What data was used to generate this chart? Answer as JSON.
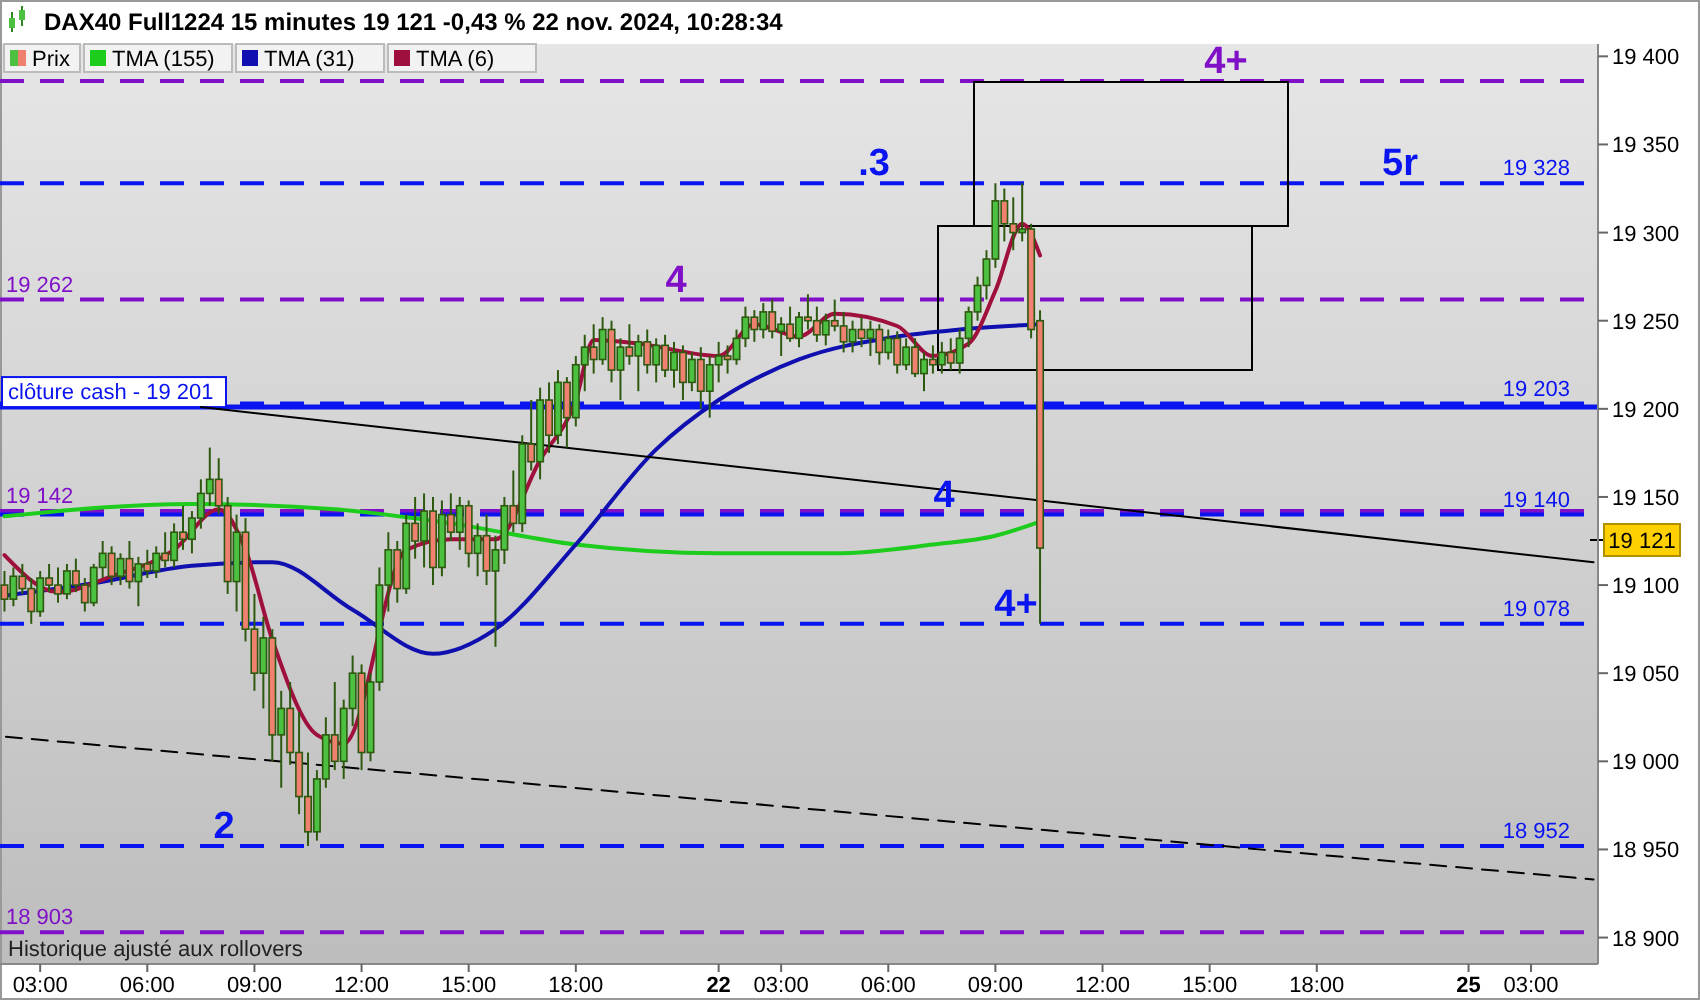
{
  "chart_data": {
    "type": "candlestick",
    "title": "DAX40 Full1224 15 minutes 19 121 -0,43 % 22 nov. 2024, 10:28:34",
    "legend": "top left",
    "grid": false,
    "categories": [
      null,
      null,
      null,
      null,
      "03:00",
      null,
      null,
      null,
      null,
      null,
      null,
      null,
      null,
      null,
      null,
      null,
      "06:00",
      null,
      null,
      null,
      null,
      null,
      null,
      null,
      null,
      null,
      null,
      null,
      "09:00",
      null,
      null,
      null,
      null,
      null,
      null,
      null,
      null,
      null,
      null,
      null,
      "12:00",
      null,
      null,
      null,
      null,
      null,
      null,
      null,
      null,
      null,
      null,
      null,
      "15:00",
      null,
      null,
      null,
      null,
      null,
      null,
      null,
      null,
      null,
      null,
      null,
      "18:00",
      null,
      null,
      null,
      null,
      null,
      null,
      null,
      null,
      null,
      null,
      null,
      null,
      null,
      null,
      null,
      "22",
      null,
      null,
      null,
      null,
      null,
      null,
      "03:00",
      null,
      null,
      null,
      null,
      null,
      null,
      null,
      null,
      null,
      null,
      null,
      "06:00",
      null,
      null,
      null,
      null,
      null,
      null,
      null,
      null,
      null,
      null,
      null,
      "09:00",
      null,
      null,
      null,
      null,
      null,
      null,
      null,
      null,
      null,
      null,
      null,
      "12:00",
      null,
      null,
      null,
      null,
      null,
      null,
      null,
      null,
      null,
      null,
      null,
      "15:00",
      null,
      null,
      null,
      null,
      null,
      null,
      null,
      null,
      null,
      null,
      null,
      "18:00",
      null,
      null,
      null,
      null,
      null,
      null,
      null,
      null,
      null,
      null,
      null,
      null,
      null,
      null,
      null,
      null,
      "25",
      null,
      null,
      null,
      null,
      null,
      null,
      "03:00",
      null,
      null,
      null,
      null,
      null,
      null,
      null
    ],
    "ylim": [
      18885,
      19407
    ],
    "yticks": [
      {
        "value": 18900,
        "label": "18 900"
      },
      {
        "value": 18950,
        "label": "18 950"
      },
      {
        "value": 19000,
        "label": "19 000"
      },
      {
        "value": 19050,
        "label": "19 050"
      },
      {
        "value": 19100,
        "label": "19 100"
      },
      {
        "value": 19150,
        "label": "19 150"
      },
      {
        "value": 19200,
        "label": "19 200"
      },
      {
        "value": 19250,
        "label": "19 250"
      },
      {
        "value": 19300,
        "label": "19 300"
      },
      {
        "value": 19350,
        "label": "19 350"
      },
      {
        "value": 19400,
        "label": "19 400"
      }
    ],
    "series": [
      {
        "name": "Prix",
        "type": "candlestick",
        "colors": [
          "#f08070",
          "#4cc040",
          "#f08070",
          "#f08070",
          "#4cc040",
          "#f08070",
          "#f08070",
          "#4cc040",
          "#f08070",
          "#f08070",
          "#4cc040",
          "#4cc040",
          "#f08070",
          "#4cc040",
          "#f08070",
          "#4cc040",
          "#f08070",
          "#4cc040",
          "#f08070",
          "#4cc040",
          "#f08070",
          "#4cc040",
          "#4cc040",
          "#4cc040",
          "#f08070",
          "#f08070",
          "#4cc040",
          "#f08070",
          "#f08070",
          "#4cc040",
          "#f08070",
          "#4cc040",
          "#f08070",
          "#f08070",
          "#f08070",
          "#4cc040",
          "#4cc040",
          "#f08070",
          "#4cc040",
          "#4cc040",
          "#f08070",
          "#4cc040",
          "#4cc040",
          "#4cc040",
          "#f08070",
          "#4cc040",
          "#f08070",
          "#4cc040",
          "#f08070",
          "#4cc040",
          "#f08070",
          "#4cc040",
          "#f08070",
          "#4cc040",
          "#f08070",
          "#4cc040",
          "#4cc040",
          "#f08070",
          "#4cc040",
          "#f08070",
          "#4cc040",
          "#f08070",
          "#4cc040",
          "#f08070",
          "#4cc040",
          "#4cc040",
          "#f08070",
          "#4cc040",
          "#f08070",
          "#4cc040",
          "#f08070",
          "#4cc040",
          "#f08070",
          "#4cc040",
          "#f08070",
          "#4cc040",
          "#f08070",
          "#4cc040",
          "#f08070",
          "#4cc040",
          "#4cc040",
          "#f08070",
          "#4cc040",
          "#4cc040",
          "#f08070",
          "#4cc040",
          "#f08070",
          "#4cc040",
          "#f08070",
          "#4cc040",
          "#f08070",
          "#f08070",
          "#4cc040",
          "#f08070",
          "#f08070",
          "#4cc040",
          "#f08070",
          "#4cc040",
          "#f08070",
          "#4cc040",
          "#f08070",
          "#4cc040",
          "#f08070",
          "#4cc040",
          "#f08070",
          "#4cc040",
          "#f08070",
          "#4cc040",
          "#4cc040",
          "#4cc040",
          "#4cc040",
          "#4cc040",
          "#f08070",
          "#f08070",
          "#4cc040",
          "#f08070",
          "#f08070",
          null,
          null,
          null,
          null,
          null,
          null,
          null,
          null,
          null,
          null,
          null,
          null,
          null,
          null,
          null,
          null,
          null,
          null,
          null,
          null,
          null,
          null,
          null,
          null,
          null,
          null,
          null,
          null,
          null,
          null,
          null,
          null,
          null,
          null,
          null,
          null,
          null,
          null,
          null,
          null,
          null,
          null,
          null,
          null,
          null,
          null,
          null,
          null,
          null,
          null,
          null,
          null,
          null,
          null,
          null,
          null,
          null,
          null,
          null,
          null,
          null,
          null
        ],
        "ohlc": [
          [
            19100,
            19108,
            19085,
            19092
          ],
          [
            19092,
            19110,
            19088,
            19105
          ],
          [
            19105,
            19112,
            19095,
            19098
          ],
          [
            19098,
            19104,
            19078,
            19085
          ],
          [
            19085,
            19108,
            19082,
            19104
          ],
          [
            19104,
            19112,
            19096,
            19100
          ],
          [
            19100,
            19110,
            19090,
            19095
          ],
          [
            19095,
            19112,
            19092,
            19108
          ],
          [
            19108,
            19115,
            19096,
            19100
          ],
          [
            19100,
            19104,
            19085,
            19090
          ],
          [
            19090,
            19112,
            19088,
            19110
          ],
          [
            19110,
            19125,
            19104,
            19118
          ],
          [
            19118,
            19122,
            19100,
            19105
          ],
          [
            19105,
            19118,
            19100,
            19115
          ],
          [
            19115,
            19125,
            19098,
            19102
          ],
          [
            19102,
            19116,
            19088,
            19112
          ],
          [
            19112,
            19120,
            19104,
            19108
          ],
          [
            19108,
            19122,
            19104,
            19118
          ],
          [
            19118,
            19130,
            19110,
            19114
          ],
          [
            19114,
            19135,
            19110,
            19130
          ],
          [
            19130,
            19145,
            19120,
            19126
          ],
          [
            19126,
            19142,
            19118,
            19138
          ],
          [
            19138,
            19160,
            19132,
            19152
          ],
          [
            19152,
            19178,
            19145,
            19160
          ],
          [
            19160,
            19172,
            19140,
            19145
          ],
          [
            19145,
            19150,
            19095,
            19102
          ],
          [
            19102,
            19140,
            19085,
            19130
          ],
          [
            19130,
            19138,
            19068,
            19075
          ],
          [
            19075,
            19095,
            19040,
            19050
          ],
          [
            19050,
            19082,
            19030,
            19070
          ],
          [
            19070,
            19075,
            19000,
            19015
          ],
          [
            19015,
            19040,
            18985,
            19030
          ],
          [
            19030,
            19045,
            18998,
            19005
          ],
          [
            19005,
            19028,
            18970,
            18980
          ],
          [
            18980,
            19005,
            18952,
            18960
          ],
          [
            18960,
            18995,
            18955,
            18990
          ],
          [
            18990,
            19025,
            18985,
            19015
          ],
          [
            19015,
            19045,
            18995,
            19000
          ],
          [
            19000,
            19035,
            18990,
            19030
          ],
          [
            19030,
            19060,
            19020,
            19050
          ],
          [
            19050,
            19055,
            18995,
            19005
          ],
          [
            19005,
            19050,
            19000,
            19045
          ],
          [
            19045,
            19110,
            19040,
            19100
          ],
          [
            19100,
            19130,
            19085,
            19120
          ],
          [
            19120,
            19125,
            19090,
            19098
          ],
          [
            19098,
            19140,
            19095,
            19135
          ],
          [
            19135,
            19150,
            19115,
            19125
          ],
          [
            19125,
            19152,
            19110,
            19142
          ],
          [
            19142,
            19150,
            19100,
            19110
          ],
          [
            19110,
            19148,
            19105,
            19140
          ],
          [
            19140,
            19152,
            19125,
            19130
          ],
          [
            19130,
            19150,
            19120,
            19145
          ],
          [
            19145,
            19148,
            19110,
            19118
          ],
          [
            19118,
            19135,
            19105,
            19128
          ],
          [
            19128,
            19140,
            19100,
            19108
          ],
          [
            19108,
            19128,
            19065,
            19120
          ],
          [
            19120,
            19150,
            19112,
            19145
          ],
          [
            19145,
            19165,
            19130,
            19135
          ],
          [
            19135,
            19185,
            19130,
            19180
          ],
          [
            19180,
            19205,
            19165,
            19170
          ],
          [
            19170,
            19212,
            19160,
            19205
          ],
          [
            19205,
            19215,
            19175,
            19185
          ],
          [
            19185,
            19222,
            19180,
            19215
          ],
          [
            19215,
            19218,
            19178,
            19195
          ],
          [
            19195,
            19230,
            19190,
            19225
          ],
          [
            19225,
            19242,
            19210,
            19235
          ],
          [
            19235,
            19248,
            19220,
            19228
          ],
          [
            19228,
            19252,
            19225,
            19245
          ],
          [
            19245,
            19250,
            19215,
            19222
          ],
          [
            19222,
            19240,
            19205,
            19235
          ],
          [
            19235,
            19248,
            19225,
            19230
          ],
          [
            19230,
            19242,
            19210,
            19238
          ],
          [
            19238,
            19245,
            19220,
            19225
          ],
          [
            19225,
            19240,
            19215,
            19236
          ],
          [
            19236,
            19242,
            19218,
            19222
          ],
          [
            19222,
            19238,
            19212,
            19232
          ],
          [
            19232,
            19236,
            19205,
            19215
          ],
          [
            19215,
            19232,
            19210,
            19228
          ],
          [
            19228,
            19235,
            19200,
            19210
          ],
          [
            19210,
            19230,
            19195,
            19225
          ],
          [
            19225,
            19238,
            19215,
            19230
          ],
          [
            19230,
            19236,
            19220,
            19228
          ],
          [
            19228,
            19245,
            19225,
            19240
          ],
          [
            19240,
            19258,
            19235,
            19252
          ],
          [
            19252,
            19256,
            19238,
            19245
          ],
          [
            19245,
            19260,
            19240,
            19255
          ],
          [
            19255,
            19262,
            19240,
            19244
          ],
          [
            19244,
            19252,
            19230,
            19248
          ],
          [
            19248,
            19258,
            19238,
            19240
          ],
          [
            19240,
            19255,
            19235,
            19252
          ],
          [
            19252,
            19265,
            19245,
            19250
          ],
          [
            19250,
            19258,
            19238,
            19242
          ],
          [
            19242,
            19254,
            19236,
            19250
          ],
          [
            19250,
            19262,
            19244,
            19247
          ],
          [
            19247,
            19255,
            19232,
            19238
          ],
          [
            19238,
            19250,
            19232,
            19245
          ],
          [
            19245,
            19252,
            19235,
            19240
          ],
          [
            19240,
            19250,
            19230,
            19245
          ],
          [
            19245,
            19248,
            19225,
            19232
          ],
          [
            19232,
            19245,
            19228,
            19240
          ],
          [
            19240,
            19244,
            19220,
            19225
          ],
          [
            19225,
            19240,
            19222,
            19235
          ],
          [
            19235,
            19240,
            19218,
            19220
          ],
          [
            19220,
            19232,
            19210,
            19228
          ],
          [
            19228,
            19236,
            19220,
            19225
          ],
          [
            19225,
            19238,
            19220,
            19232
          ],
          [
            19232,
            19240,
            19222,
            19226
          ],
          [
            19226,
            19245,
            19220,
            19240
          ],
          [
            19240,
            19258,
            19235,
            19255
          ],
          [
            19255,
            19275,
            19250,
            19270
          ],
          [
            19270,
            19290,
            19262,
            19285
          ],
          [
            19285,
            19328,
            19280,
            19318
          ],
          [
            19318,
            19325,
            19295,
            19305
          ],
          [
            19305,
            19320,
            19290,
            19300
          ],
          [
            19300,
            19328,
            19295,
            19302
          ],
          [
            19302,
            19305,
            19240,
            19245
          ],
          [
            19250,
            19256,
            19078,
            19121
          ],
          null,
          null,
          null,
          null,
          null,
          null,
          null,
          null,
          null,
          null,
          null,
          null,
          null,
          null,
          null,
          null,
          null,
          null,
          null,
          null,
          null,
          null,
          null,
          null,
          null,
          null,
          null,
          null,
          null,
          null,
          null,
          null,
          null,
          null,
          null,
          null,
          null,
          null,
          null,
          null,
          null,
          null,
          null,
          null,
          null,
          null,
          null,
          null,
          null,
          null,
          null,
          null,
          null,
          null,
          null,
          null,
          null,
          null,
          null,
          null,
          null,
          null
        ]
      },
      {
        "name": "TMA (155)",
        "type": "line",
        "color": "#1ecc1e",
        "values": [
          19139,
          null,
          null,
          null,
          null,
          null,
          null,
          null,
          null,
          null,
          null,
          null,
          null,
          null,
          null,
          null,
          null,
          null,
          null,
          null,
          null,
          19146,
          null,
          null,
          null,
          null,
          null,
          null,
          null,
          null,
          null,
          null,
          null,
          null,
          null,
          null,
          null,
          19143,
          null,
          null,
          null,
          null,
          null,
          null,
          null,
          null,
          null,
          null,
          null,
          null,
          19135,
          null,
          null,
          null,
          null,
          null,
          null,
          null,
          null,
          null,
          null,
          null,
          null,
          null,
          19123,
          null,
          null,
          null,
          null,
          null,
          null,
          null,
          null,
          null,
          null,
          null,
          null,
          null,
          null,
          null,
          19118,
          null,
          null,
          null,
          null,
          null,
          null,
          null,
          null,
          null,
          null,
          null,
          null,
          19118,
          null,
          null,
          null,
          null,
          null,
          null,
          null,
          null,
          null,
          null,
          19123,
          null,
          null,
          null,
          null,
          null,
          null,
          19128,
          null,
          null,
          null,
          null,
          19136,
          null,
          null,
          null,
          null,
          null,
          null,
          null,
          null,
          null,
          null,
          null,
          null,
          null,
          null,
          null,
          null,
          null,
          null,
          null,
          null,
          null,
          null,
          null,
          null,
          null,
          null,
          null,
          null,
          null,
          null,
          null,
          null,
          null,
          null,
          null,
          null,
          null,
          null,
          null,
          null,
          null,
          null,
          null,
          null,
          null,
          null,
          null,
          null,
          null,
          null,
          null,
          null,
          null,
          null,
          null,
          null,
          null,
          null,
          null,
          null,
          null,
          null
        ]
      },
      {
        "name": "TMA (31)",
        "type": "line",
        "color": "#1010b0",
        "values": [
          19094,
          null,
          null,
          null,
          null,
          null,
          null,
          null,
          null,
          null,
          19101,
          null,
          null,
          null,
          null,
          null,
          null,
          null,
          null,
          null,
          null,
          19111,
          null,
          null,
          null,
          null,
          null,
          null,
          null,
          null,
          19113,
          null,
          null,
          null,
          null,
          null,
          null,
          null,
          null,
          19086,
          null,
          null,
          null,
          null,
          null,
          null,
          null,
          null,
          19061,
          null,
          null,
          null,
          null,
          null,
          null,
          19075,
          null,
          null,
          null,
          null,
          null,
          null,
          null,
          null,
          19123,
          null,
          null,
          null,
          null,
          null,
          null,
          null,
          null,
          19177,
          null,
          null,
          null,
          null,
          null,
          null,
          19205,
          null,
          null,
          null,
          null,
          null,
          null,
          null,
          null,
          19228,
          null,
          null,
          null,
          null,
          null,
          null,
          null,
          null,
          null,
          null,
          19241,
          null,
          null,
          null,
          null,
          null,
          null,
          19245,
          null,
          null,
          null,
          null,
          null,
          null,
          null,
          null,
          19248,
          null,
          null,
          null,
          null,
          null,
          null,
          null,
          null,
          null,
          null,
          null,
          null,
          null,
          null,
          null,
          null,
          null,
          null,
          null,
          null,
          null,
          null,
          null,
          null,
          null,
          null,
          null,
          null,
          null,
          null,
          null,
          null,
          null,
          null,
          null,
          null,
          null,
          null,
          null,
          null,
          null,
          null,
          null,
          null,
          null,
          null,
          null,
          null,
          null,
          null,
          null,
          null,
          null,
          null,
          null,
          null,
          null,
          null,
          null,
          null,
          null,
          null
        ]
      },
      {
        "name": "TMA (6)",
        "type": "line",
        "color": "#a0103c",
        "values": [
          19117,
          null,
          null,
          null,
          null,
          null,
          19096,
          null,
          null,
          null,
          null,
          null,
          19105,
          null,
          null,
          null,
          null,
          null,
          null,
          19120,
          null,
          null,
          null,
          null,
          19143,
          null,
          null,
          19120,
          null,
          null,
          19069,
          null,
          null,
          null,
          null,
          19015,
          null,
          null,
          19010,
          null,
          null,
          null,
          null,
          null,
          null,
          19120,
          null,
          null,
          null,
          null,
          19126,
          null,
          null,
          null,
          null,
          19126,
          null,
          null,
          null,
          null,
          19171,
          null,
          null,
          null,
          19205,
          null,
          19239,
          null,
          null,
          null,
          null,
          19237,
          null,
          null,
          null,
          null,
          null,
          null,
          null,
          null,
          19230,
          null,
          null,
          null,
          19248,
          null,
          null,
          null,
          null,
          19241,
          null,
          null,
          null,
          19254,
          null,
          null,
          null,
          null,
          null,
          null,
          19247,
          null,
          null,
          null,
          19230,
          null,
          null,
          null,
          19237,
          null,
          null,
          19267,
          null,
          null,
          19305,
          null,
          19287,
          null,
          null,
          null,
          null,
          null,
          null,
          null,
          null,
          null,
          null,
          null,
          null,
          null,
          null,
          null,
          null,
          null,
          null,
          null,
          null,
          null,
          null,
          null,
          null,
          null,
          null,
          null,
          null,
          null,
          null,
          null,
          null,
          null,
          null,
          null,
          null,
          null,
          null,
          null,
          null,
          null,
          null,
          null,
          null,
          null,
          null,
          null,
          null,
          null,
          null,
          null,
          null,
          null,
          null,
          null,
          null,
          null,
          null,
          null,
          null,
          null,
          null
        ]
      },
      {
        "type": "line",
        "color": "#000000",
        "line_style": "solid",
        "values": [
          null,
          null,
          null,
          null,
          null,
          null,
          null,
          null,
          null,
          null,
          null,
          null,
          null,
          null,
          null,
          null,
          null,
          null,
          null,
          null,
          null,
          null,
          19201,
          null,
          null,
          null,
          null,
          null,
          null,
          null,
          null,
          null,
          null,
          null,
          null,
          null,
          null,
          null,
          null,
          null,
          null,
          null,
          null,
          null,
          null,
          null,
          null,
          null,
          null,
          null,
          null,
          null,
          null,
          null,
          null,
          null,
          null,
          null,
          null,
          null,
          null,
          null,
          null,
          null,
          null,
          null,
          null,
          null,
          null,
          null,
          null,
          null,
          null,
          null,
          null,
          null,
          null,
          null,
          null,
          null,
          null,
          null,
          null,
          null,
          null,
          null,
          null,
          null,
          null,
          null,
          null,
          null,
          null,
          null,
          null,
          null,
          null,
          null,
          null,
          null,
          null,
          null,
          null,
          null,
          null,
          null,
          null,
          null,
          null,
          null,
          null,
          null,
          null,
          null,
          null,
          null,
          null,
          null,
          null,
          null,
          null,
          null,
          null,
          null,
          null,
          null,
          null,
          null,
          null,
          null,
          null,
          null,
          null,
          null,
          null,
          null,
          null,
          null,
          null,
          null,
          null,
          null,
          null,
          null,
          null,
          null,
          null,
          null,
          null,
          null,
          null,
          null,
          null,
          null,
          null,
          null,
          null,
          null,
          null,
          null,
          null,
          null,
          null,
          null,
          null,
          null,
          null,
          null,
          null,
          null,
          null,
          null,
          null,
          null,
          null,
          null,
          null,
          null,
          19113
        ]
      },
      {
        "type": "line",
        "color": "#000000",
        "line_style": "dashed",
        "values": [
          19014,
          null,
          null,
          null,
          null,
          null,
          null,
          null,
          null,
          null,
          null,
          null,
          null,
          null,
          null,
          null,
          null,
          null,
          null,
          null,
          null,
          null,
          null,
          null,
          null,
          null,
          null,
          null,
          null,
          null,
          null,
          null,
          null,
          null,
          null,
          null,
          null,
          null,
          null,
          null,
          null,
          null,
          null,
          null,
          null,
          null,
          null,
          null,
          null,
          null,
          null,
          null,
          null,
          null,
          null,
          null,
          null,
          null,
          null,
          null,
          null,
          null,
          null,
          null,
          null,
          null,
          null,
          null,
          null,
          null,
          null,
          null,
          null,
          null,
          null,
          null,
          null,
          null,
          null,
          null,
          null,
          null,
          null,
          null,
          null,
          null,
          null,
          null,
          null,
          null,
          null,
          null,
          null,
          null,
          null,
          null,
          null,
          null,
          null,
          null,
          null,
          null,
          null,
          null,
          null,
          null,
          null,
          null,
          null,
          null,
          null,
          null,
          null,
          null,
          null,
          null,
          null,
          null,
          null,
          null,
          null,
          null,
          null,
          null,
          null,
          null,
          null,
          null,
          null,
          null,
          null,
          null,
          null,
          null,
          null,
          null,
          null,
          null,
          null,
          null,
          null,
          null,
          null,
          null,
          null,
          null,
          null,
          null,
          null,
          null,
          null,
          null,
          null,
          null,
          null,
          null,
          null,
          null,
          null,
          null,
          null,
          null,
          null,
          null,
          null,
          null,
          null,
          null,
          null,
          null,
          null,
          null,
          null,
          null,
          null,
          null,
          null,
          null,
          18933
        ]
      }
    ],
    "ref_lines": [
      {
        "axis": "y",
        "value": 19386,
        "color": "#8010c8",
        "line_style": "dashed"
      },
      {
        "axis": "y",
        "value": 19328,
        "label": "19 328",
        "color": "#0a14f0",
        "line_style": "dashed"
      },
      {
        "axis": "y",
        "value": 19262,
        "color": "#8010c8",
        "line_style": "dashed"
      },
      {
        "axis": "y",
        "value": 19203,
        "label": "19 203",
        "color": "#0a14f0",
        "line_style": "dashed"
      },
      {
        "axis": "y",
        "value": 19201,
        "label": "clôture cash -  19 201",
        "color": "#0a14f0",
        "line_style": "solid"
      },
      {
        "axis": "y",
        "value": 19142,
        "color": "#8010c8",
        "line_style": "dashed"
      },
      {
        "axis": "y",
        "value": 19140,
        "label": "19 140",
        "color": "#0a14f0",
        "line_style": "dashed"
      },
      {
        "axis": "y",
        "value": 19078,
        "label": "19 078",
        "color": "#0a14f0",
        "line_style": "dashed"
      },
      {
        "axis": "y",
        "value": 18952,
        "label": "18 952",
        "color": "#0a14f0",
        "line_style": "dashed"
      },
      {
        "axis": "y",
        "value": 18903,
        "color": "#8010c8",
        "line_style": "dashed"
      }
    ],
    "annotations": [
      {
        "text": "19 262",
        "y": 19262
      },
      {
        "text": "19 142",
        "y": 19142
      },
      {
        "text": "18 903",
        "y": 18903
      },
      {
        "text": "2",
        "y": 18952
      },
      {
        "text": ".3",
        "y": 19328
      },
      {
        "text": "4",
        "y": 19262
      },
      {
        "text": "4",
        "y": 19140
      },
      {
        "text": "4+",
        "y": 19078
      },
      {
        "text": "4+",
        "y": 19386
      },
      {
        "text": "5r",
        "y": 19328
      },
      "19 121",
      "Historique ajusté aux rollovers"
    ]
  }
}
